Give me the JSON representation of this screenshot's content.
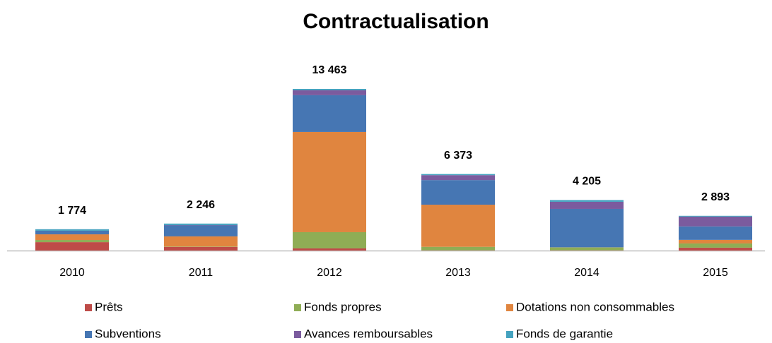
{
  "chart_data": {
    "type": "stacked_bar",
    "title": "Contractualisation",
    "categories": [
      "2010",
      "2011",
      "2012",
      "2013",
      "2014",
      "2015"
    ],
    "series": [
      {
        "name": "Prêts",
        "color": "#be4b48",
        "values": [
          700,
          300,
          180,
          20,
          20,
          240
        ]
      },
      {
        "name": "Fonds propres",
        "color": "#8fad55",
        "values": [
          180,
          30,
          1350,
          290,
          240,
          350
        ]
      },
      {
        "name": "Dotations non consommables",
        "color": "#e0853f",
        "values": [
          470,
          850,
          8350,
          3510,
          10,
          300
        ]
      },
      {
        "name": "Subventions",
        "color": "#4676b3",
        "values": [
          300,
          910,
          3060,
          2050,
          3200,
          1120
        ]
      },
      {
        "name": "Avances remboursables",
        "color": "#7b5b9e",
        "values": [
          0,
          30,
          410,
          410,
          590,
          820
        ]
      },
      {
        "name": "Fonds de garantie",
        "color": "#44a2bf",
        "values": [
          124,
          126,
          113,
          93,
          145,
          63
        ]
      }
    ],
    "totals": [
      1774,
      2246,
      13463,
      6373,
      4205,
      2893
    ],
    "total_labels": [
      "1 774",
      "2 246",
      "13 463",
      "6 373",
      "4 205",
      "2 893"
    ],
    "legend": "bottom"
  }
}
